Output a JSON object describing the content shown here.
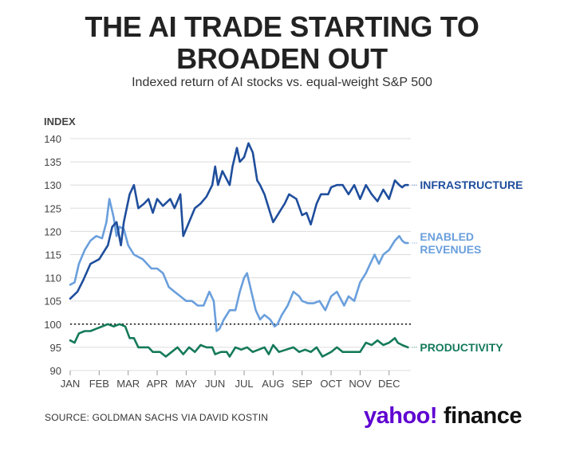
{
  "header": {
    "title": "THE AI TRADE STARTING TO\nBROADEN OUT",
    "subtitle": "Indexed return of AI stocks vs. equal-weight S&P 500"
  },
  "footer": {
    "source": "SOURCE: GOLDMAN SACHS VIA DAVID KOSTIN",
    "logo_text": "yahoo!finance"
  },
  "colors": {
    "infrastructure": "#1f4e9c",
    "enabled_revenues": "#6a9fdc",
    "productivity": "#157a5a",
    "grid": "#dcdcdc",
    "axis_text": "#444444"
  },
  "chart_data": {
    "type": "line",
    "ylabel": "INDEX",
    "ylim": [
      90,
      140
    ],
    "yticks": [
      90,
      95,
      100,
      105,
      110,
      115,
      120,
      125,
      130,
      135,
      140
    ],
    "reference_line": 100,
    "grid": true,
    "x_unit": "month (0 = Jan 1)",
    "xlim": [
      0,
      11.75
    ],
    "xticks": [
      {
        "label": "JAN",
        "x": 0
      },
      {
        "label": "FEB",
        "x": 1
      },
      {
        "label": "MAR",
        "x": 2
      },
      {
        "label": "APR",
        "x": 3
      },
      {
        "label": "MAY",
        "x": 4
      },
      {
        "label": "JUN",
        "x": 5
      },
      {
        "label": "JUL",
        "x": 6
      },
      {
        "label": "AUG",
        "x": 7
      },
      {
        "label": "SEP",
        "x": 8
      },
      {
        "label": "OCT",
        "x": 9
      },
      {
        "label": "NOV",
        "x": 10
      },
      {
        "label": "DEC",
        "x": 11
      }
    ],
    "series": [
      {
        "name": "INFRASTRUCTURE",
        "color_key": "infrastructure",
        "points": [
          [
            0,
            105.5
          ],
          [
            0.25,
            107
          ],
          [
            0.45,
            109.5
          ],
          [
            0.7,
            113
          ],
          [
            1.0,
            114
          ],
          [
            1.3,
            117
          ],
          [
            1.45,
            121
          ],
          [
            1.6,
            122
          ],
          [
            1.75,
            117
          ],
          [
            1.85,
            122
          ],
          [
            2.05,
            128
          ],
          [
            2.2,
            130
          ],
          [
            2.35,
            125
          ],
          [
            2.55,
            126
          ],
          [
            2.7,
            127
          ],
          [
            2.85,
            124
          ],
          [
            3.0,
            127
          ],
          [
            3.2,
            125.5
          ],
          [
            3.45,
            127
          ],
          [
            3.6,
            125
          ],
          [
            3.8,
            128
          ],
          [
            3.9,
            119
          ],
          [
            4.1,
            122
          ],
          [
            4.3,
            125
          ],
          [
            4.5,
            126
          ],
          [
            4.7,
            127.5
          ],
          [
            4.9,
            130
          ],
          [
            5.0,
            134
          ],
          [
            5.1,
            130
          ],
          [
            5.25,
            133
          ],
          [
            5.5,
            130
          ],
          [
            5.6,
            134
          ],
          [
            5.75,
            138
          ],
          [
            5.85,
            135
          ],
          [
            6.0,
            136
          ],
          [
            6.15,
            139
          ],
          [
            6.3,
            137
          ],
          [
            6.45,
            131
          ],
          [
            6.55,
            130
          ],
          [
            6.7,
            128
          ],
          [
            6.9,
            124
          ],
          [
            7.0,
            122
          ],
          [
            7.2,
            124
          ],
          [
            7.4,
            126
          ],
          [
            7.55,
            128
          ],
          [
            7.8,
            127
          ],
          [
            8.0,
            123.5
          ],
          [
            8.15,
            124
          ],
          [
            8.3,
            121.5
          ],
          [
            8.5,
            126
          ],
          [
            8.65,
            128
          ],
          [
            8.9,
            128
          ],
          [
            9.0,
            129.5
          ],
          [
            9.2,
            130
          ],
          [
            9.4,
            130
          ],
          [
            9.6,
            128
          ],
          [
            9.8,
            130
          ],
          [
            10.0,
            127
          ],
          [
            10.2,
            130
          ],
          [
            10.4,
            128
          ],
          [
            10.6,
            126.5
          ],
          [
            10.8,
            129
          ],
          [
            11.0,
            127
          ],
          [
            11.2,
            131
          ],
          [
            11.35,
            130
          ],
          [
            11.45,
            129.5
          ],
          [
            11.55,
            130
          ],
          [
            11.65,
            130
          ]
        ]
      },
      {
        "name": "ENABLED\nREVENUES",
        "color_key": "enabled_revenues",
        "points": [
          [
            0,
            108.5
          ],
          [
            0.15,
            109
          ],
          [
            0.3,
            113
          ],
          [
            0.5,
            116
          ],
          [
            0.7,
            118
          ],
          [
            0.9,
            119
          ],
          [
            1.1,
            118.5
          ],
          [
            1.25,
            122
          ],
          [
            1.35,
            127
          ],
          [
            1.5,
            123
          ],
          [
            1.6,
            119
          ],
          [
            1.7,
            121
          ],
          [
            1.85,
            120.5
          ],
          [
            2.0,
            117
          ],
          [
            2.2,
            115
          ],
          [
            2.5,
            114
          ],
          [
            2.8,
            112
          ],
          [
            3.0,
            112
          ],
          [
            3.2,
            111
          ],
          [
            3.4,
            108
          ],
          [
            3.6,
            107
          ],
          [
            3.8,
            106
          ],
          [
            4.0,
            105
          ],
          [
            4.2,
            105
          ],
          [
            4.4,
            104
          ],
          [
            4.6,
            104
          ],
          [
            4.8,
            107
          ],
          [
            4.95,
            105
          ],
          [
            5.05,
            98.5
          ],
          [
            5.15,
            99
          ],
          [
            5.3,
            101
          ],
          [
            5.5,
            103
          ],
          [
            5.7,
            103
          ],
          [
            5.85,
            107
          ],
          [
            6.0,
            110
          ],
          [
            6.1,
            111
          ],
          [
            6.25,
            107
          ],
          [
            6.4,
            103
          ],
          [
            6.55,
            101
          ],
          [
            6.7,
            102
          ],
          [
            6.9,
            101
          ],
          [
            7.05,
            99.5
          ],
          [
            7.15,
            100
          ],
          [
            7.3,
            102
          ],
          [
            7.5,
            104
          ],
          [
            7.7,
            107
          ],
          [
            7.9,
            106
          ],
          [
            8.0,
            105
          ],
          [
            8.2,
            104.5
          ],
          [
            8.4,
            104.5
          ],
          [
            8.6,
            105
          ],
          [
            8.8,
            103
          ],
          [
            9.0,
            106
          ],
          [
            9.2,
            107
          ],
          [
            9.45,
            104
          ],
          [
            9.6,
            106
          ],
          [
            9.8,
            105
          ],
          [
            10.0,
            109
          ],
          [
            10.2,
            111
          ],
          [
            10.35,
            113
          ],
          [
            10.5,
            115
          ],
          [
            10.65,
            113
          ],
          [
            10.8,
            115
          ],
          [
            11.0,
            116
          ],
          [
            11.2,
            118
          ],
          [
            11.35,
            119
          ],
          [
            11.45,
            118
          ],
          [
            11.55,
            117.5
          ],
          [
            11.65,
            117.5
          ]
        ]
      },
      {
        "name": "PRODUCTIVITY",
        "color_key": "productivity",
        "points": [
          [
            0,
            96.5
          ],
          [
            0.15,
            96
          ],
          [
            0.3,
            98
          ],
          [
            0.5,
            98.5
          ],
          [
            0.7,
            98.5
          ],
          [
            0.9,
            99
          ],
          [
            1.1,
            99.5
          ],
          [
            1.3,
            100
          ],
          [
            1.5,
            99.5
          ],
          [
            1.7,
            100
          ],
          [
            1.9,
            99.5
          ],
          [
            2.05,
            97
          ],
          [
            2.2,
            97
          ],
          [
            2.35,
            95
          ],
          [
            2.5,
            95
          ],
          [
            2.7,
            95
          ],
          [
            2.85,
            94
          ],
          [
            3.1,
            94
          ],
          [
            3.3,
            93
          ],
          [
            3.5,
            94
          ],
          [
            3.7,
            95
          ],
          [
            3.9,
            93.5
          ],
          [
            4.1,
            95
          ],
          [
            4.3,
            94
          ],
          [
            4.5,
            95.5
          ],
          [
            4.7,
            95
          ],
          [
            4.9,
            95
          ],
          [
            5.0,
            93.5
          ],
          [
            5.2,
            94
          ],
          [
            5.4,
            94
          ],
          [
            5.5,
            93
          ],
          [
            5.7,
            95
          ],
          [
            5.9,
            94.5
          ],
          [
            6.1,
            95
          ],
          [
            6.3,
            94
          ],
          [
            6.5,
            94.5
          ],
          [
            6.7,
            95
          ],
          [
            6.85,
            93.5
          ],
          [
            7.0,
            95.5
          ],
          [
            7.2,
            94
          ],
          [
            7.45,
            94.5
          ],
          [
            7.7,
            95
          ],
          [
            7.9,
            94
          ],
          [
            8.1,
            94.5
          ],
          [
            8.3,
            94
          ],
          [
            8.5,
            95
          ],
          [
            8.7,
            93
          ],
          [
            9.0,
            94
          ],
          [
            9.2,
            95
          ],
          [
            9.4,
            94
          ],
          [
            9.6,
            94
          ],
          [
            9.8,
            94
          ],
          [
            10.0,
            94
          ],
          [
            10.2,
            96
          ],
          [
            10.4,
            95.5
          ],
          [
            10.6,
            96.5
          ],
          [
            10.8,
            95.5
          ],
          [
            11.0,
            96
          ],
          [
            11.2,
            97
          ],
          [
            11.3,
            96
          ],
          [
            11.45,
            95.5
          ],
          [
            11.65,
            95
          ]
        ]
      }
    ]
  }
}
